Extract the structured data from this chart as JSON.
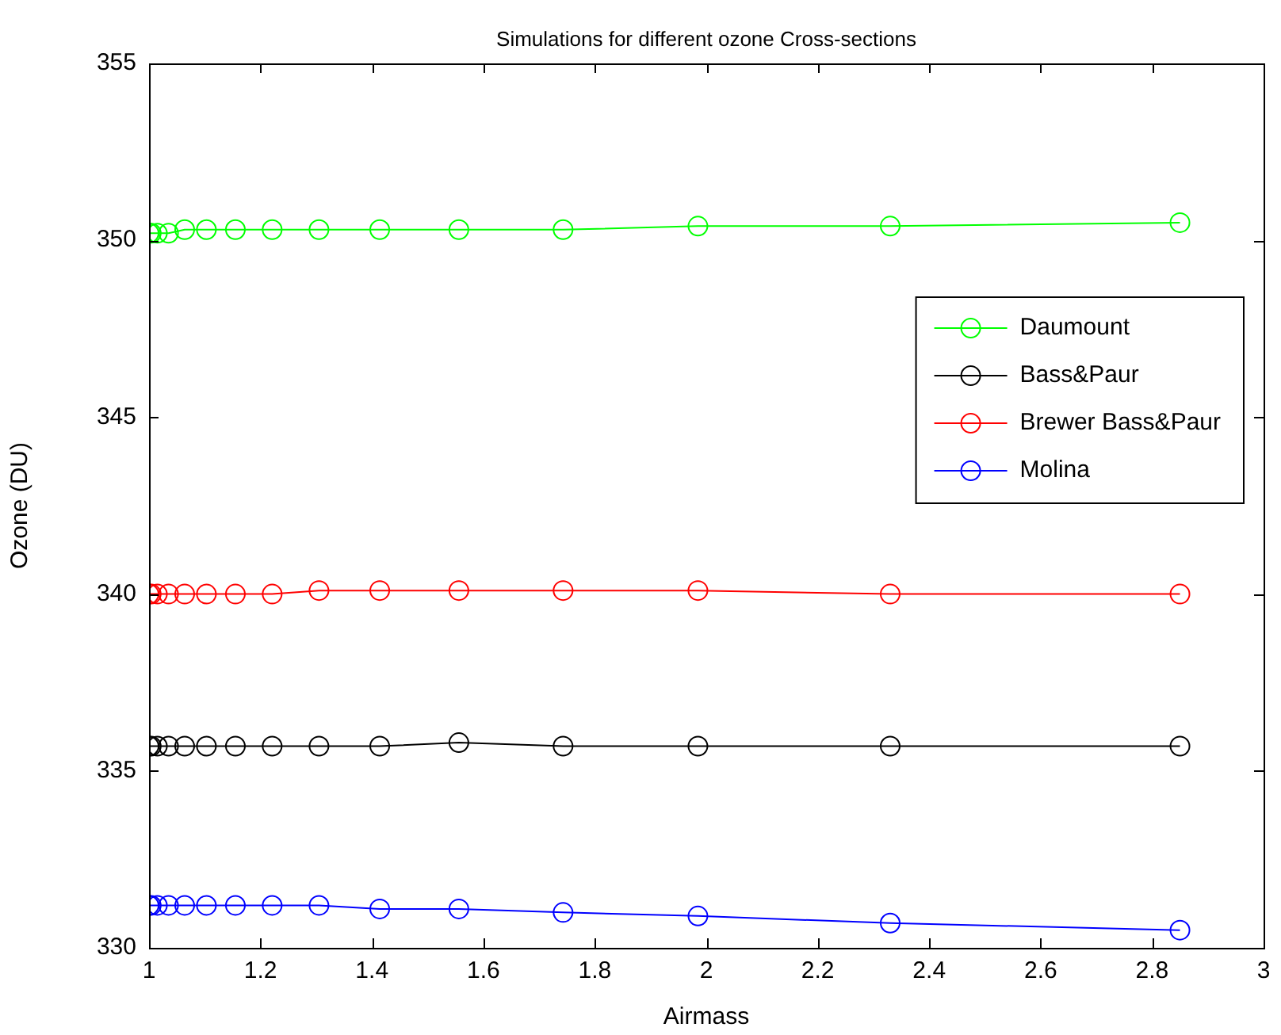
{
  "chart_data": {
    "type": "line",
    "title": "Simulations for different ozone Cross-sections",
    "xlabel": "Airmass",
    "ylabel": "Ozone (DU)",
    "x": [
      1.0,
      1.004,
      1.015,
      1.035,
      1.064,
      1.103,
      1.155,
      1.221,
      1.305,
      1.414,
      1.556,
      1.743,
      1.985,
      2.33,
      2.85
    ],
    "series": [
      {
        "name": "Daumount",
        "color": "#00ff00",
        "values": [
          350.2,
          350.2,
          350.2,
          350.2,
          350.3,
          350.3,
          350.3,
          350.3,
          350.3,
          350.3,
          350.3,
          350.3,
          350.4,
          350.4,
          350.5
        ]
      },
      {
        "name": "Bass&Paur",
        "color": "#000000",
        "values": [
          335.7,
          335.7,
          335.7,
          335.7,
          335.7,
          335.7,
          335.7,
          335.7,
          335.7,
          335.7,
          335.8,
          335.7,
          335.7,
          335.7,
          335.7
        ]
      },
      {
        "name": "Brewer Bass&Paur",
        "color": "#ff0000",
        "values": [
          340.0,
          340.0,
          340.0,
          340.0,
          340.0,
          340.0,
          340.0,
          340.0,
          340.1,
          340.1,
          340.1,
          340.1,
          340.1,
          340.0,
          340.0
        ]
      },
      {
        "name": "Molina",
        "color": "#0000ff",
        "values": [
          331.2,
          331.2,
          331.2,
          331.2,
          331.2,
          331.2,
          331.2,
          331.2,
          331.2,
          331.1,
          331.1,
          331.0,
          330.9,
          330.7,
          330.5
        ]
      }
    ],
    "xlim": [
      1,
      3
    ],
    "xticks": [
      1,
      1.2,
      1.4,
      1.6,
      1.8,
      2,
      2.2,
      2.4,
      2.6,
      2.8,
      3
    ],
    "ylim": [
      330,
      355
    ],
    "yticks": [
      330,
      335,
      340,
      345,
      350,
      355
    ],
    "grid": false,
    "legend": "top right",
    "marker": "circle",
    "line_style": "solid"
  }
}
